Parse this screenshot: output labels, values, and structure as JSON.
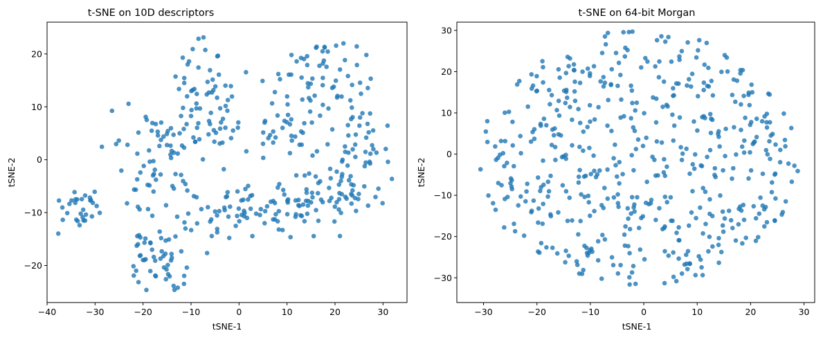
{
  "point_color": "#1f77b4",
  "chart_data": [
    {
      "type": "scatter",
      "title": "t-SNE on 10D descriptors",
      "xlabel": "tSNE-1",
      "ylabel": "tSNE-2",
      "xlim": [
        -40,
        35
      ],
      "ylim": [
        -27,
        26
      ],
      "xticks": [
        -40,
        -30,
        -20,
        -10,
        0,
        10,
        20,
        30
      ],
      "yticks": [
        -20,
        -10,
        0,
        10,
        20
      ],
      "grid": false,
      "legend": "none",
      "seed": 101,
      "clusters": [
        {
          "cx": -33,
          "cy": -9.5,
          "sx": 2.2,
          "sy": 2.0,
          "n": 30
        },
        {
          "cx": -17,
          "cy": -17.5,
          "sx": 3.2,
          "sy": 3.0,
          "n": 45
        },
        {
          "cx": -13,
          "cy": -22.5,
          "sx": 1.5,
          "sy": 1.2,
          "n": 8
        },
        {
          "cx": -17,
          "cy": 4,
          "sx": 5.0,
          "sy": 3.0,
          "n": 45
        },
        {
          "cx": -16,
          "cy": -5,
          "sx": 3.0,
          "sy": 3.0,
          "n": 25
        },
        {
          "cx": -6,
          "cy": 13,
          "sx": 3.5,
          "sy": 5.0,
          "n": 40
        },
        {
          "cx": -2,
          "cy": -10,
          "sx": 5.0,
          "sy": 2.5,
          "n": 40
        },
        {
          "cx": 11,
          "cy": -8,
          "sx": 6.0,
          "sy": 3.0,
          "n": 55
        },
        {
          "cx": 22,
          "cy": -6,
          "sx": 5.0,
          "sy": 3.0,
          "n": 40
        },
        {
          "cx": 19,
          "cy": 16,
          "sx": 5.0,
          "sy": 4.0,
          "n": 55
        },
        {
          "cx": 25,
          "cy": 3,
          "sx": 4.0,
          "sy": 4.0,
          "n": 40
        },
        {
          "cx": 10,
          "cy": 6,
          "sx": 5.0,
          "sy": 5.0,
          "n": 40
        },
        {
          "cx": -3,
          "cy": 5,
          "sx": 3.0,
          "sy": 1.5,
          "n": 12
        },
        {
          "cx": -10,
          "cy": 16,
          "sx": 2.0,
          "sy": 4.0,
          "n": 10
        }
      ]
    },
    {
      "type": "scatter",
      "title": "t-SNE on 64-bit Morgan",
      "xlabel": "tSNE-1",
      "ylabel": "tSNE-2",
      "xlim": [
        -35,
        32
      ],
      "ylim": [
        -36,
        32
      ],
      "xticks": [
        -30,
        -20,
        -10,
        0,
        10,
        20,
        30
      ],
      "yticks": [
        -30,
        -20,
        -10,
        0,
        10,
        20,
        30
      ],
      "grid": false,
      "legend": "none",
      "seed": 202,
      "ellipse": {
        "cx": -1,
        "cy": -1,
        "rx": 30,
        "ry": 31,
        "n": 520
      }
    }
  ]
}
